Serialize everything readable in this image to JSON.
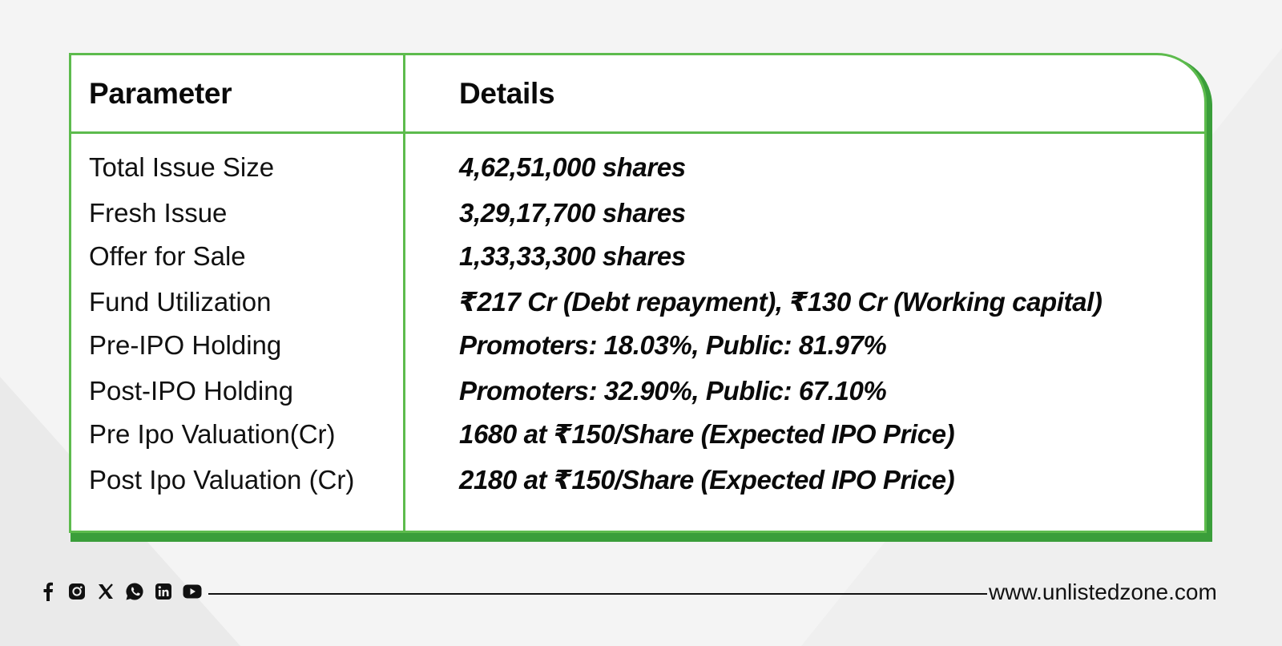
{
  "table": {
    "header": {
      "parameter": "Parameter",
      "details": "Details"
    },
    "rows": [
      {
        "parameter": "Total Issue Size",
        "details": "4,62,51,000 shares"
      },
      {
        "parameter": "Fresh Issue",
        "details": "3,29,17,700 shares"
      },
      {
        "parameter": "Offer for Sale",
        "details": "1,33,33,300 shares"
      },
      {
        "parameter": "Fund Utilization",
        "details": "₹217 Cr (Debt repayment), ₹130 Cr (Working capital)"
      },
      {
        "parameter": "Pre-IPO Holding",
        "details": "Promoters: 18.03%, Public: 81.97%"
      },
      {
        "parameter": "Post-IPO Holding",
        "details": "Promoters: 32.90%, Public: 67.10%"
      },
      {
        "parameter": "Pre Ipo Valuation(Cr)",
        "details": "1680 at ₹150/Share (Expected IPO Price)"
      },
      {
        "parameter": "Post Ipo Valuation (Cr)",
        "details": "2180 at ₹150/Share (Expected IPO Price)"
      }
    ]
  },
  "footer": {
    "social_icons": [
      "facebook-icon",
      "instagram-icon",
      "x-icon",
      "whatsapp-icon",
      "linkedin-icon",
      "youtube-icon"
    ],
    "website": "www.unlistedzone.com"
  },
  "colors": {
    "accent_green": "#5dbb4d",
    "shadow_green": "#3a9e3a",
    "background": "#efefef"
  }
}
